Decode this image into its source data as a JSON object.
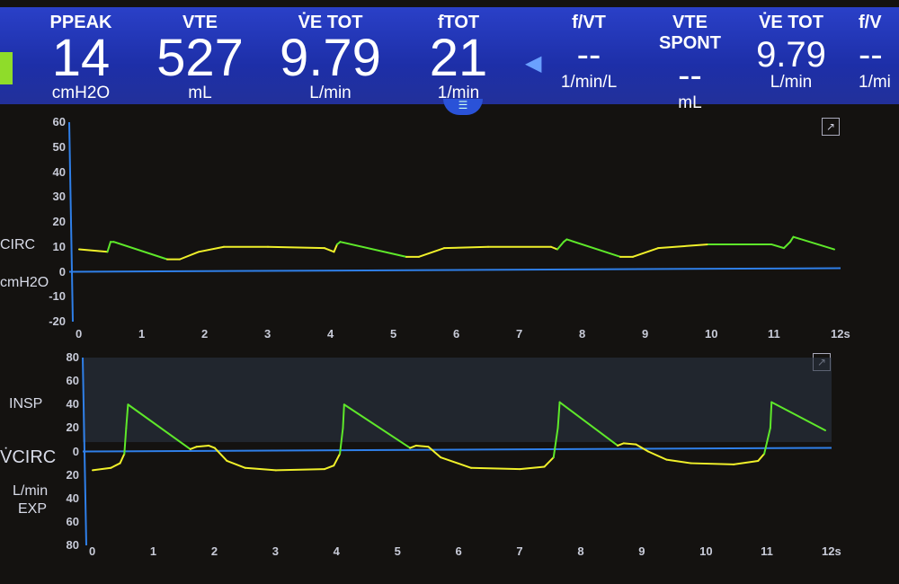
{
  "top_params": [
    {
      "label": "PPEAK",
      "value": "14",
      "unit": "cmH2O"
    },
    {
      "label": "VTE",
      "value": "527",
      "unit": "mL"
    },
    {
      "label": "V̇E TOT",
      "value": "9.79",
      "unit": "L/min"
    },
    {
      "label": "fTOT",
      "value": "21",
      "unit": "1/min"
    }
  ],
  "secondary_params": [
    {
      "label": "f/VT",
      "value": "--",
      "unit": "1/min/L"
    },
    {
      "label": "VTE SPONT",
      "value": "--",
      "unit": "mL"
    },
    {
      "label": "V̇E TOT",
      "value": "9.79",
      "unit": "L/min"
    },
    {
      "label": "f/V",
      "value": "--",
      "unit": "1/mi"
    }
  ],
  "colors": {
    "header": "#2238b8",
    "axis": "#2f7fe8",
    "mandatory": "#5ee82a",
    "spontaneous": "#f0f02a"
  },
  "chart_data": [
    {
      "type": "line",
      "side_label": "CIRC",
      "unit_label": "cmH2O",
      "ylim": [
        -20,
        60
      ],
      "yticks": [
        60,
        50,
        40,
        30,
        20,
        10,
        0,
        -10,
        -20
      ],
      "xlim": [
        0,
        12
      ],
      "xticks": [
        "0",
        "1",
        "2",
        "3",
        "4",
        "5",
        "6",
        "7",
        "8",
        "9",
        "10",
        "11",
        "12s"
      ],
      "series": [
        {
          "x": [
            0,
            0.45,
            0.5,
            0.55,
            1.4,
            1.6,
            1.9,
            2.3,
            3,
            3.9,
            4.05,
            4.1,
            4.15,
            5.2,
            5.4,
            5.8,
            6.5,
            7.5,
            7.6,
            7.7,
            7.75,
            8.6,
            8.8,
            9.2,
            10,
            11,
            11.2,
            11.3,
            11.35,
            12
          ],
          "y": [
            9,
            8,
            12,
            12,
            5,
            5,
            8,
            10,
            10,
            9.5,
            8,
            11,
            12,
            6,
            6,
            9.5,
            10,
            10,
            9,
            12,
            13,
            6,
            6,
            9.5,
            11,
            11,
            9.5,
            12,
            14,
            9
          ]
        }
      ]
    },
    {
      "type": "line",
      "side_label": "V̇CIRC",
      "unit_label": "L/min",
      "insp_label": "INSP",
      "exp_label": "EXP",
      "ylim": [
        -80,
        80
      ],
      "yticks": [
        "80",
        "60",
        "40",
        "20",
        "0",
        "20",
        "40",
        "60",
        "80"
      ],
      "xlim": [
        0,
        12
      ],
      "xticks": [
        "0",
        "1",
        "2",
        "3",
        "4",
        "5",
        "6",
        "7",
        "8",
        "9",
        "10",
        "11",
        "12s"
      ],
      "series": [
        {
          "x": [
            0,
            0.3,
            0.45,
            0.52,
            0.55,
            0.58,
            1.6,
            1.7,
            1.9,
            2.0,
            2.2,
            2.5,
            3,
            3.8,
            3.95,
            4.05,
            4.1,
            4.12,
            5.2,
            5.3,
            5.5,
            5.7,
            6.2,
            7,
            7.4,
            7.55,
            7.62,
            7.65,
            8.6,
            8.7,
            8.9,
            9.1,
            9.4,
            9.8,
            10.5,
            10.9,
            11.0,
            11.1,
            11.12,
            12
          ],
          "y": [
            -16,
            -14,
            -10,
            -2,
            20,
            40,
            2,
            4,
            5,
            3,
            -8,
            -14,
            -16,
            -15,
            -12,
            -2,
            20,
            40,
            3,
            5,
            4,
            -5,
            -14,
            -15,
            -13,
            -5,
            20,
            42,
            5,
            7,
            6,
            0,
            -7,
            -10,
            -11,
            -8,
            -2,
            20,
            42,
            18
          ]
        }
      ]
    }
  ]
}
